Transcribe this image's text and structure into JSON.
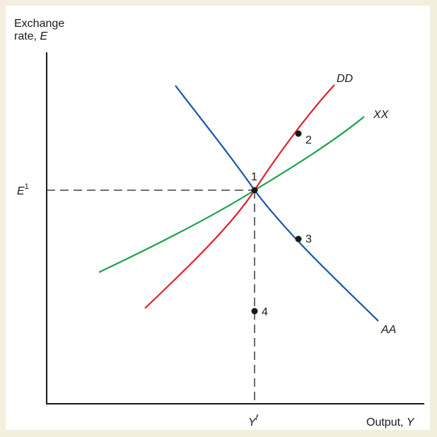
{
  "axes": {
    "y_label_line1": "Exchange",
    "y_label_line2_prefix": "rate, ",
    "y_label_line2_var": "E",
    "x_label_prefix": "Output, ",
    "x_label_var": "Y",
    "e1_base": "E",
    "e1_sup": "1",
    "yf_base": "Y",
    "yf_sup": "f"
  },
  "curves": {
    "dd": {
      "label": "DD",
      "color": "#e31e2d"
    },
    "xx": {
      "label": "XX",
      "color": "#1aa24a"
    },
    "aa": {
      "label": "AA",
      "color": "#1756a8"
    }
  },
  "points": [
    "1",
    "2",
    "3",
    "4"
  ],
  "colors": {
    "axis": "#1a1a1a",
    "background": "#f4eedf",
    "panel": "#ffffff"
  }
}
